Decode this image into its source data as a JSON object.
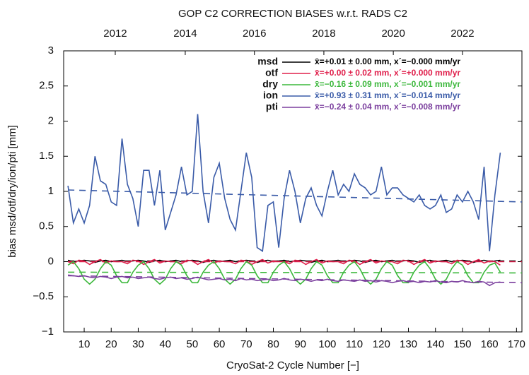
{
  "chart_data": {
    "type": "line",
    "title": "GOP C2 CORRECTION BIASES w.r.t. RADS C2",
    "x_label": "CryoSat-2 Cycle Number [−]",
    "y_label": "bias msd/otf/dry/ion/pti [mm]",
    "xlim": [
      2.4,
      172
    ],
    "ylim": [
      -1,
      3
    ],
    "xticks": [
      10,
      20,
      30,
      40,
      50,
      60,
      70,
      80,
      90,
      100,
      110,
      120,
      130,
      140,
      150,
      160,
      170
    ],
    "yticks": [
      {
        "value": -1,
        "label": "−1"
      },
      {
        "value": -0.5,
        "label": "−0.5"
      },
      0,
      0.5,
      1,
      1.5,
      2,
      2.5,
      3
    ],
    "x2ticks": [
      {
        "value": 21.5,
        "label": "2012"
      },
      {
        "value": 47.4,
        "label": "2014"
      },
      {
        "value": 73.0,
        "label": "2016"
      },
      {
        "value": 98.7,
        "label": "2018"
      },
      {
        "value": 124.4,
        "label": "2020"
      },
      {
        "value": 150.0,
        "label": "2022"
      }
    ],
    "legend": "upper right",
    "x": [
      4,
      6,
      8,
      10,
      12,
      14,
      16,
      18,
      20,
      22,
      24,
      26,
      28,
      30,
      32,
      34,
      36,
      38,
      40,
      42,
      44,
      46,
      48,
      50,
      52,
      54,
      56,
      58,
      60,
      62,
      64,
      66,
      68,
      70,
      72,
      74,
      76,
      78,
      80,
      82,
      84,
      86,
      88,
      90,
      92,
      94,
      96,
      98,
      100,
      102,
      104,
      106,
      108,
      110,
      112,
      114,
      116,
      118,
      120,
      122,
      124,
      126,
      128,
      130,
      132,
      134,
      136,
      138,
      140,
      142,
      144,
      146,
      148,
      150,
      152,
      154,
      156,
      158,
      160,
      162,
      164
    ],
    "trend_x": [
      4,
      172
    ],
    "series": [
      {
        "name": "msd",
        "color": "#000000",
        "stats": "x̄=+0.01 ± 0.00 mm, x´=−0.000 mm/yr",
        "trend": [
          0.01,
          0.01
        ],
        "values": [
          0.02,
          0.0,
          0.01,
          0.02,
          0.01,
          -0.01,
          0.01,
          0.02,
          0.0,
          0.01,
          0.02,
          0.0,
          0.01,
          0.02,
          0.01,
          -0.01,
          0.01,
          0.02,
          0.0,
          0.01,
          0.02,
          0.0,
          0.01,
          0.02,
          0.01,
          -0.01,
          0.01,
          0.02,
          0.0,
          0.01,
          0.02,
          0.0,
          0.01,
          0.02,
          0.01,
          -0.01,
          0.01,
          0.02,
          0.0,
          0.01,
          0.02,
          0.0,
          0.01,
          0.02,
          0.01,
          -0.01,
          0.01,
          0.02,
          0.0,
          0.01,
          0.02,
          0.0,
          0.01,
          0.02,
          0.01,
          -0.01,
          0.01,
          0.02,
          0.0,
          0.01,
          0.02,
          0.0,
          0.01,
          0.02,
          0.01,
          -0.01,
          0.01,
          0.02,
          0.0,
          0.01,
          0.02,
          0.0,
          0.01,
          0.02,
          0.01,
          -0.01,
          0.01,
          0.02,
          0.0,
          0.01,
          0.02
        ]
      },
      {
        "name": "otf",
        "color": "#e0204c",
        "stats": "x̄=+0.00 ± 0.02 mm, x´=+0.000 mm/yr",
        "trend": [
          0.0,
          0.0
        ],
        "values": [
          0.0,
          -0.03,
          0.02,
          0.01,
          -0.04,
          0.0,
          0.03,
          -0.02,
          0.01,
          0.0,
          0.0,
          -0.03,
          0.02,
          0.01,
          -0.04,
          0.0,
          0.03,
          -0.02,
          0.01,
          0.0,
          0.0,
          -0.03,
          0.02,
          0.01,
          -0.04,
          0.0,
          0.03,
          -0.02,
          0.01,
          0.0,
          0.0,
          -0.03,
          0.02,
          0.01,
          -0.04,
          0.0,
          0.03,
          -0.02,
          0.01,
          0.0,
          0.0,
          -0.03,
          0.02,
          0.01,
          -0.04,
          0.0,
          0.03,
          -0.02,
          0.01,
          0.0,
          0.0,
          -0.03,
          0.02,
          0.01,
          -0.04,
          0.0,
          0.03,
          -0.02,
          0.01,
          0.0,
          0.0,
          -0.03,
          0.02,
          0.01,
          -0.04,
          0.0,
          0.03,
          -0.02,
          0.01,
          0.0,
          0.0,
          -0.03,
          0.02,
          0.01,
          -0.04,
          0.0,
          0.03,
          -0.02,
          0.01,
          0.0,
          -0.05
        ]
      },
      {
        "name": "dry",
        "color": "#3cb83c",
        "stats": "x̄=−0.16 ± 0.09 mm, x´=−0.001 mm/yr",
        "trend": [
          -0.15,
          -0.16
        ],
        "values": [
          -0.05,
          0.0,
          -0.1,
          -0.25,
          -0.32,
          -0.25,
          -0.1,
          0.0,
          -0.05,
          -0.2,
          -0.3,
          -0.3,
          -0.15,
          -0.05,
          0.0,
          -0.1,
          -0.25,
          -0.32,
          -0.25,
          -0.1,
          0.0,
          -0.05,
          -0.2,
          -0.3,
          -0.3,
          -0.15,
          -0.05,
          0.0,
          -0.1,
          -0.25,
          -0.32,
          -0.25,
          -0.1,
          0.0,
          -0.05,
          -0.2,
          -0.3,
          -0.3,
          -0.15,
          -0.05,
          0.0,
          -0.1,
          -0.25,
          -0.32,
          -0.25,
          -0.1,
          0.0,
          -0.05,
          -0.2,
          -0.3,
          -0.3,
          -0.15,
          -0.05,
          0.0,
          -0.1,
          -0.25,
          -0.32,
          -0.25,
          -0.1,
          0.0,
          -0.05,
          -0.2,
          -0.3,
          -0.3,
          -0.15,
          -0.05,
          0.0,
          -0.1,
          -0.25,
          -0.32,
          -0.25,
          -0.1,
          0.0,
          -0.05,
          -0.2,
          -0.3,
          -0.3,
          -0.15,
          -0.05,
          -0.02,
          -0.15
        ]
      },
      {
        "name": "ion",
        "color": "#3a5ba8",
        "stats": "x̄=+0.93 ± 0.31 mm, x´=−0.014 mm/yr",
        "trend": [
          1.02,
          0.85
        ],
        "values": [
          1.08,
          0.55,
          0.75,
          0.55,
          0.8,
          1.5,
          1.15,
          1.1,
          0.85,
          0.8,
          1.75,
          1.1,
          0.9,
          0.5,
          1.3,
          1.3,
          0.8,
          1.3,
          0.45,
          0.7,
          0.95,
          1.35,
          0.95,
          1.0,
          2.1,
          1.0,
          0.55,
          1.2,
          1.4,
          0.9,
          0.6,
          0.45,
          1.0,
          1.55,
          1.2,
          0.2,
          0.15,
          0.8,
          0.85,
          0.2,
          0.9,
          1.3,
          1.0,
          0.55,
          0.9,
          1.05,
          0.8,
          0.65,
          1.0,
          1.3,
          0.95,
          1.1,
          1.0,
          1.25,
          1.1,
          1.05,
          0.95,
          1.0,
          1.35,
          0.95,
          1.05,
          1.05,
          0.95,
          0.9,
          0.85,
          0.95,
          0.8,
          0.75,
          0.8,
          0.95,
          0.7,
          0.75,
          0.95,
          0.85,
          1.0,
          0.85,
          0.6,
          1.35,
          0.15,
          0.95,
          1.55
        ]
      },
      {
        "name": "pti",
        "color": "#7b3f9e",
        "stats": "x̄=−0.24 ± 0.04 mm, x´=−0.008 mm/yr",
        "trend": [
          -0.2,
          -0.3
        ],
        "values": [
          -0.19,
          -0.2,
          -0.21,
          -0.2,
          -0.22,
          -0.23,
          -0.21,
          -0.22,
          -0.24,
          -0.22,
          -0.21,
          -0.23,
          -0.22,
          -0.24,
          -0.23,
          -0.22,
          -0.24,
          -0.25,
          -0.23,
          -0.22,
          -0.24,
          -0.23,
          -0.25,
          -0.24,
          -0.22,
          -0.24,
          -0.26,
          -0.25,
          -0.24,
          -0.26,
          -0.25,
          -0.27,
          -0.24,
          -0.26,
          -0.25,
          -0.27,
          -0.26,
          -0.25,
          -0.27,
          -0.26,
          -0.24,
          -0.26,
          -0.27,
          -0.25,
          -0.26,
          -0.28,
          -0.26,
          -0.27,
          -0.25,
          -0.27,
          -0.28,
          -0.26,
          -0.27,
          -0.28,
          -0.26,
          -0.28,
          -0.27,
          -0.29,
          -0.27,
          -0.28,
          -0.3,
          -0.28,
          -0.27,
          -0.29,
          -0.28,
          -0.3,
          -0.28,
          -0.29,
          -0.27,
          -0.29,
          -0.3,
          -0.28,
          -0.29,
          -0.27,
          -0.29,
          -0.3,
          -0.28,
          -0.29,
          -0.34,
          -0.3,
          -0.29
        ]
      }
    ]
  }
}
